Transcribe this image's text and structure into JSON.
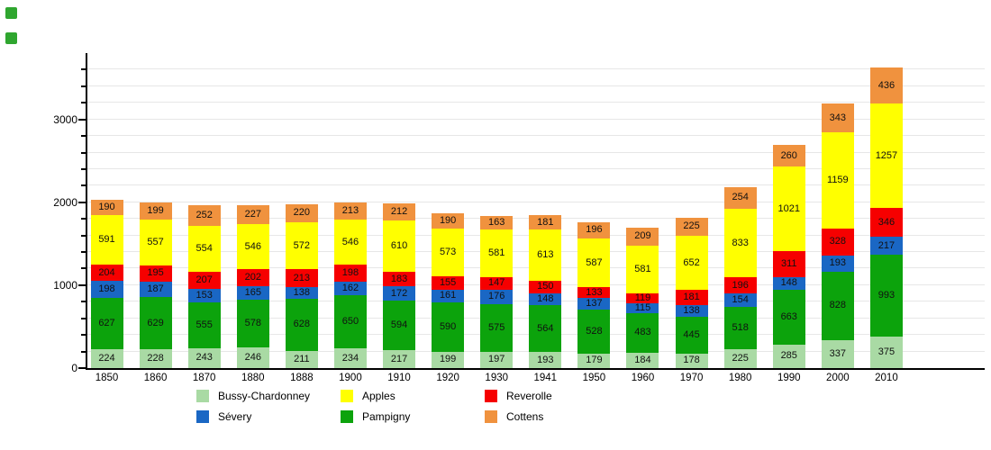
{
  "page": {
    "background": "#ffffff"
  },
  "decorations": {
    "corner_square_color": "#2fa62f"
  },
  "chart_data": {
    "type": "bar",
    "stacked": true,
    "title": "",
    "xlabel": "",
    "ylabel": "",
    "categories": [
      "1850",
      "1860",
      "1870",
      "1880",
      "1888",
      "1900",
      "1910",
      "1920",
      "1930",
      "1941",
      "1950",
      "1960",
      "1970",
      "1980",
      "1990",
      "2000",
      "2010"
    ],
    "series": [
      {
        "name": "Bussy-Chardonney",
        "color": "#a9daa4",
        "values": [
          224,
          228,
          243,
          246,
          211,
          234,
          217,
          199,
          197,
          193,
          179,
          184,
          178,
          225,
          285,
          337,
          375
        ]
      },
      {
        "name": "Pampigny",
        "color": "#0ca30c",
        "values": [
          627,
          629,
          555,
          578,
          628,
          650,
          594,
          590,
          575,
          564,
          528,
          483,
          445,
          518,
          663,
          828,
          993
        ]
      },
      {
        "name": "Sévery",
        "color": "#1a67c4",
        "values": [
          198,
          187,
          153,
          165,
          138,
          162,
          172,
          161,
          176,
          148,
          137,
          115,
          138,
          154,
          148,
          193,
          217
        ]
      },
      {
        "name": "Reverolle",
        "color": "#f60000",
        "values": [
          204,
          195,
          207,
          202,
          213,
          198,
          183,
          155,
          147,
          150,
          133,
          119,
          181,
          196,
          311,
          328,
          346
        ]
      },
      {
        "name": "Apples",
        "color": "#ffff00",
        "values": [
          591,
          557,
          554,
          546,
          572,
          546,
          610,
          573,
          581,
          613,
          587,
          581,
          652,
          833,
          1021,
          1159,
          1257
        ]
      },
      {
        "name": "Cottens",
        "color": "#f0923e",
        "values": [
          190,
          199,
          252,
          227,
          220,
          213,
          212,
          190,
          163,
          181,
          196,
          209,
          225,
          254,
          260,
          343,
          436
        ]
      }
    ],
    "ylim": [
      0,
      3800
    ],
    "yticks": [
      0,
      1000,
      2000,
      3000
    ],
    "minor_tick_step": 200,
    "grid": true,
    "grid_step": 200,
    "legend_position": "bottom",
    "legend_order": [
      "Bussy-Chardonney",
      "Sévery",
      "Apples",
      "Pampigny",
      "Reverolle",
      "Cottens"
    ]
  }
}
